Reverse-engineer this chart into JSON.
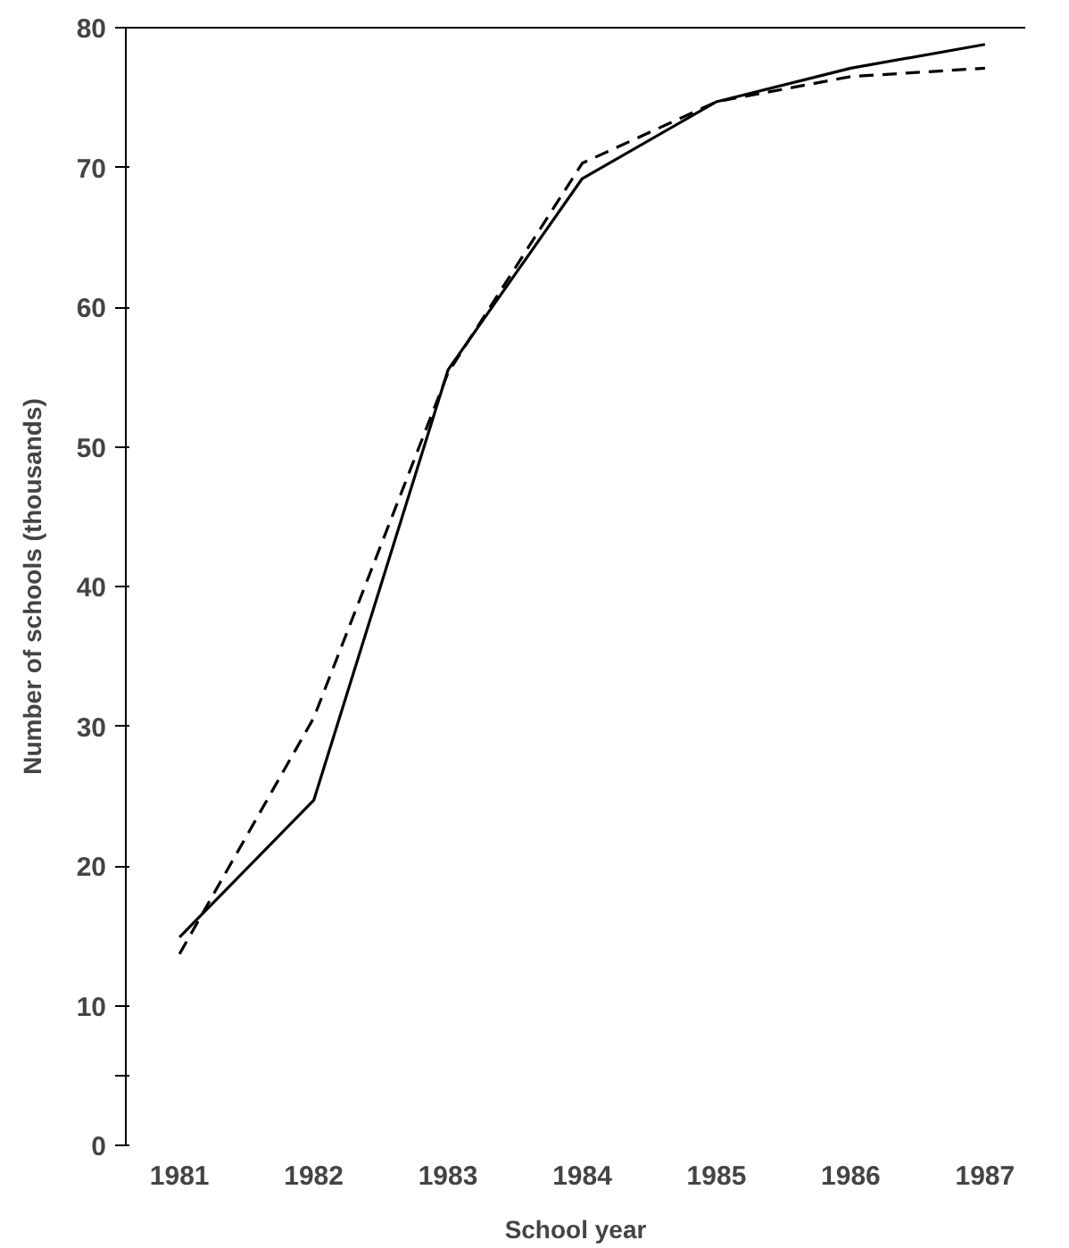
{
  "chart_data": {
    "type": "line",
    "xlabel": "School year",
    "ylabel": "Number of schools (thousands)",
    "x": [
      1981,
      1982,
      1983,
      1984,
      1985,
      1986,
      1987
    ],
    "series": [
      {
        "color": "#000000",
        "line_style": "solid",
        "values": [
          14.9,
          24.7,
          55.5,
          69.2,
          74.7,
          77.1,
          78.8
        ]
      },
      {
        "color": "#000000",
        "line_style": "dashed",
        "values": [
          13.7,
          30.6,
          55.3,
          70.3,
          74.7,
          76.5,
          77.1
        ]
      }
    ],
    "xlim": [
      1980.6,
      1987.3
    ],
    "xticks": [
      1981,
      1982,
      1983,
      1984,
      1985,
      1986,
      1987
    ],
    "ylim": [
      0,
      80
    ],
    "yticks": [
      0,
      {
        "value": 5,
        "label": null
      },
      10,
      20,
      30,
      40,
      50,
      60,
      70,
      80
    ],
    "grid": false,
    "marker": "none"
  }
}
